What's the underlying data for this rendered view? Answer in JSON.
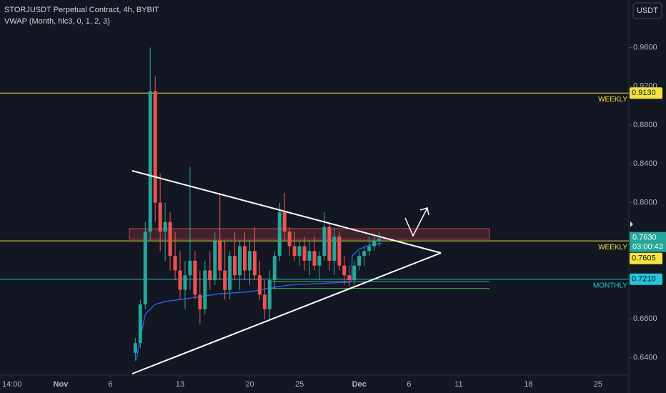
{
  "chart_data": {
    "type": "candlestick",
    "title": "STORJUSDT Perpetual Contract, 4h, BYBIT",
    "subtitle": "VWAP (Month, hlc3, 0, 1, 2, 3)",
    "currency": "USDT",
    "grid": false,
    "xlim": [
      -5.1,
      58.1
    ],
    "ylim": [
      0.622,
      1.009
    ],
    "xticks": [
      {
        "value": -3.9,
        "label": "14:00"
      },
      {
        "value": 1,
        "label": "Nov"
      },
      6,
      13,
      20,
      25,
      {
        "value": 31,
        "label": "Dec"
      },
      {
        "value": 36,
        "label": "6"
      },
      {
        "value": 41,
        "label": "11"
      },
      {
        "value": 48,
        "label": "18"
      },
      {
        "value": 55,
        "label": "25"
      }
    ],
    "yticks": [
      {
        "value": 0.64,
        "label": "0.6400"
      },
      {
        "value": 0.68,
        "label": "0.6800"
      },
      {
        "value": 0.8,
        "label": "0.8000"
      },
      {
        "value": 0.84,
        "label": "0.8400"
      },
      {
        "value": 0.88,
        "label": "0.8800"
      },
      {
        "value": 0.92,
        "label": "0.9200"
      },
      {
        "value": 0.96,
        "label": "0.9600"
      }
    ],
    "up_color": "#26a69a",
    "down_color": "#ef5350",
    "x": [
      8.5,
      9,
      9.5,
      10,
      10.5,
      11,
      11.5,
      12,
      12.5,
      13,
      13.5,
      14,
      14.5,
      15,
      15.5,
      16,
      16.5,
      17,
      17.5,
      18,
      18.5,
      19,
      19.5,
      20,
      20.5,
      21,
      21.5,
      22,
      22.5,
      23,
      23.5,
      24,
      24.5,
      25,
      25.5,
      26,
      26.5,
      27,
      27.5,
      28,
      28.5,
      29,
      29.5,
      30,
      30.5,
      31,
      31.5,
      32,
      32.5,
      33
    ],
    "open": [
      0.645,
      0.655,
      0.695,
      0.77,
      0.915,
      0.8,
      0.77,
      0.78,
      0.745,
      0.73,
      0.71,
      0.725,
      0.74,
      0.705,
      0.69,
      0.73,
      0.72,
      0.76,
      0.73,
      0.71,
      0.745,
      0.725,
      0.755,
      0.73,
      0.75,
      0.725,
      0.705,
      0.69,
      0.72,
      0.745,
      0.79,
      0.77,
      0.755,
      0.745,
      0.755,
      0.74,
      0.75,
      0.735,
      0.745,
      0.775,
      0.74,
      0.765,
      0.735,
      0.725,
      0.72,
      0.735,
      0.745,
      0.75,
      0.755,
      0.76
    ],
    "high": [
      0.66,
      0.7,
      0.78,
      0.96,
      0.93,
      0.83,
      0.8,
      0.79,
      0.77,
      0.75,
      0.74,
      0.837,
      0.75,
      0.73,
      0.74,
      0.75,
      0.77,
      0.81,
      0.76,
      0.75,
      0.77,
      0.76,
      0.77,
      0.76,
      0.775,
      0.74,
      0.72,
      0.73,
      0.75,
      0.8,
      0.81,
      0.775,
      0.77,
      0.76,
      0.765,
      0.76,
      0.765,
      0.75,
      0.79,
      0.78,
      0.775,
      0.77,
      0.745,
      0.735,
      0.74,
      0.75,
      0.755,
      0.765,
      0.765,
      0.77
    ],
    "low": [
      0.637,
      0.65,
      0.69,
      0.76,
      0.78,
      0.75,
      0.74,
      0.73,
      0.72,
      0.7,
      0.69,
      0.71,
      0.7,
      0.675,
      0.685,
      0.71,
      0.715,
      0.72,
      0.7,
      0.7,
      0.72,
      0.71,
      0.72,
      0.715,
      0.72,
      0.7,
      0.68,
      0.68,
      0.71,
      0.74,
      0.76,
      0.745,
      0.74,
      0.735,
      0.73,
      0.725,
      0.73,
      0.72,
      0.74,
      0.73,
      0.725,
      0.73,
      0.715,
      0.713,
      0.715,
      0.73,
      0.735,
      0.745,
      0.75,
      0.755
    ],
    "close": [
      0.655,
      0.695,
      0.77,
      0.915,
      0.8,
      0.77,
      0.78,
      0.745,
      0.73,
      0.71,
      0.725,
      0.74,
      0.705,
      0.69,
      0.73,
      0.72,
      0.76,
      0.73,
      0.71,
      0.745,
      0.725,
      0.755,
      0.73,
      0.75,
      0.725,
      0.705,
      0.69,
      0.72,
      0.745,
      0.79,
      0.77,
      0.755,
      0.745,
      0.755,
      0.74,
      0.75,
      0.735,
      0.745,
      0.775,
      0.74,
      0.765,
      0.735,
      0.725,
      0.72,
      0.735,
      0.745,
      0.75,
      0.755,
      0.76,
      0.763
    ],
    "vwap": {
      "color": "#2962ff",
      "x": [
        8.6,
        9,
        9.5,
        10,
        10.5,
        11.5,
        13,
        15,
        17,
        20,
        22,
        24,
        26,
        28,
        30.2,
        30.3,
        31,
        32,
        33.3
      ],
      "values": [
        0.637,
        0.66,
        0.685,
        0.69,
        0.695,
        0.698,
        0.7,
        0.703,
        0.706,
        0.708,
        0.712,
        0.715,
        0.716,
        0.717,
        0.718,
        0.745,
        0.752,
        0.756,
        0.758
      ]
    },
    "levels": [
      {
        "name": "WEEKLY",
        "value": 0.913,
        "label": "0.9130",
        "color": "#f5e342"
      },
      {
        "name": "WEEKLY",
        "value": 0.7605,
        "label": "0.7605",
        "color": "#f5e342"
      },
      {
        "name": "MONTHLY",
        "value": 0.721,
        "label": "0.7210",
        "color": "#26c6da"
      }
    ],
    "current_price": {
      "value": 0.763,
      "label": "0.7630",
      "countdown": "03:00:43",
      "color": "#26a69a"
    },
    "zones": [
      {
        "x": [
          7.9,
          44.1
        ],
        "values": [
          0.7622,
          0.7731
        ],
        "color": "#ef5350"
      }
    ],
    "support_lines": {
      "x": [
        22,
        44.1
      ],
      "values": [
        0.7185,
        0.7115
      ],
      "color": "#4caf50"
    }
  }
}
